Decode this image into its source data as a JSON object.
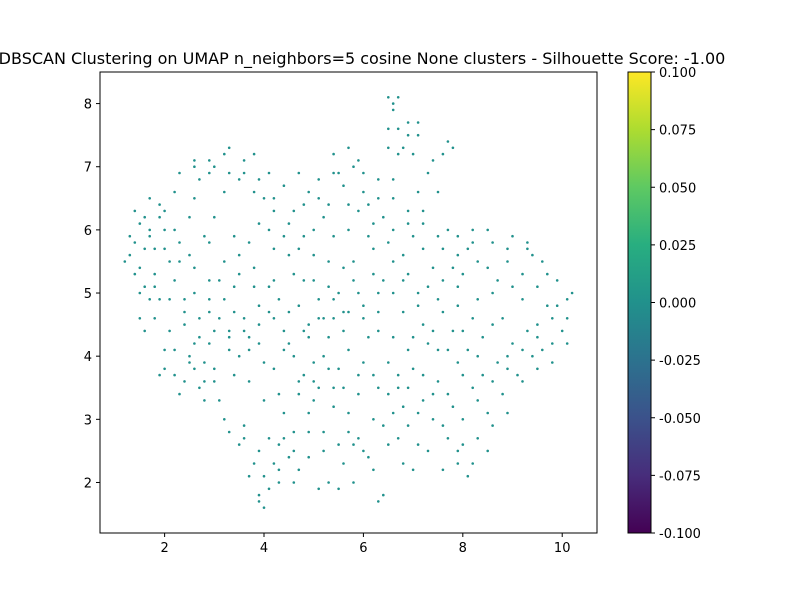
{
  "chart_data": {
    "type": "scatter",
    "title": "DBSCAN Clustering on UMAP n_neighbors=5 cosine None clusters - Silhouette Score: -1.00",
    "xlabel": "",
    "ylabel": "",
    "xlim": [
      0.7,
      10.7
    ],
    "ylim": [
      1.2,
      8.5
    ],
    "x_ticks": [
      2,
      4,
      6,
      8,
      10
    ],
    "y_ticks": [
      2,
      3,
      4,
      5,
      6,
      7,
      8
    ],
    "grid": false,
    "point_color": "#21918c",
    "colorbar": {
      "min": -0.1,
      "max": 0.1,
      "colormap": "viridis",
      "ticks": [
        "0.100",
        "0.075",
        "0.050",
        "0.025",
        "0.000",
        "-0.025",
        "-0.050",
        "-0.075",
        "-0.100"
      ],
      "tick_values": [
        0.1,
        0.075,
        0.05,
        0.025,
        0.0,
        -0.025,
        -0.05,
        -0.075,
        -0.1
      ]
    },
    "points": [
      [
        1.3,
        5.6
      ],
      [
        1.5,
        6.1
      ],
      [
        1.7,
        5.9
      ],
      [
        1.6,
        6.2
      ],
      [
        1.8,
        5.7
      ],
      [
        1.4,
        5.3
      ],
      [
        1.9,
        6.4
      ],
      [
        2.1,
        5.5
      ],
      [
        1.7,
        4.9
      ],
      [
        2.0,
        6.0
      ],
      [
        1.5,
        4.6
      ],
      [
        1.9,
        3.7
      ],
      [
        2.2,
        4.1
      ],
      [
        2.4,
        3.6
      ],
      [
        2.7,
        3.5
      ],
      [
        2.8,
        3.3
      ],
      [
        2.6,
        4.2
      ],
      [
        3.0,
        3.8
      ],
      [
        2.4,
        4.9
      ],
      [
        2.3,
        5.8
      ],
      [
        2.5,
        6.2
      ],
      [
        2.7,
        6.8
      ],
      [
        2.6,
        7.0
      ],
      [
        2.9,
        7.1
      ],
      [
        3.3,
        7.3
      ],
      [
        3.2,
        6.6
      ],
      [
        3.6,
        6.9
      ],
      [
        3.8,
        7.2
      ],
      [
        4.0,
        6.5
      ],
      [
        4.1,
        6.9
      ],
      [
        3.9,
        6.1
      ],
      [
        3.5,
        5.6
      ],
      [
        3.1,
        5.2
      ],
      [
        2.9,
        4.7
      ],
      [
        3.3,
        4.4
      ],
      [
        3.7,
        4.1
      ],
      [
        3.4,
        3.7
      ],
      [
        3.2,
        3.0
      ],
      [
        3.6,
        2.7
      ],
      [
        3.8,
        2.3
      ],
      [
        3.9,
        1.8
      ],
      [
        4.0,
        1.6
      ],
      [
        4.3,
        2.0
      ],
      [
        4.5,
        2.4
      ],
      [
        4.1,
        2.7
      ],
      [
        4.4,
        3.1
      ],
      [
        4.7,
        3.4
      ],
      [
        4.2,
        3.8
      ],
      [
        4.5,
        4.2
      ],
      [
        4.9,
        4.5
      ],
      [
        4.3,
        4.9
      ],
      [
        4.6,
        5.3
      ],
      [
        4.2,
        5.7
      ],
      [
        4.8,
        5.9
      ],
      [
        4.6,
        6.3
      ],
      [
        4.9,
        6.6
      ],
      [
        5.2,
        6.2
      ],
      [
        5.0,
        5.6
      ],
      [
        5.3,
        5.1
      ],
      [
        5.6,
        5.4
      ],
      [
        5.4,
        5.9
      ],
      [
        5.7,
        6.4
      ],
      [
        5.5,
        6.9
      ],
      [
        5.9,
        7.1
      ],
      [
        6.1,
        6.4
      ],
      [
        6.3,
        6.8
      ],
      [
        6.5,
        7.3
      ],
      [
        6.7,
        7.6
      ],
      [
        6.9,
        7.7
      ],
      [
        6.6,
        8.0
      ],
      [
        6.5,
        8.1
      ],
      [
        7.0,
        7.2
      ],
      [
        7.3,
        6.9
      ],
      [
        7.7,
        7.4
      ],
      [
        7.5,
        6.6
      ],
      [
        7.2,
        6.1
      ],
      [
        7.6,
        5.7
      ],
      [
        7.9,
        5.9
      ],
      [
        8.2,
        6.0
      ],
      [
        8.6,
        5.8
      ],
      [
        9.0,
        5.9
      ],
      [
        9.3,
        5.7
      ],
      [
        9.6,
        5.5
      ],
      [
        9.9,
        5.2
      ],
      [
        10.2,
        5.0
      ],
      [
        10.1,
        4.6
      ],
      [
        9.8,
        4.2
      ],
      [
        9.4,
        4.0
      ],
      [
        9.1,
        3.7
      ],
      [
        8.8,
        3.4
      ],
      [
        8.5,
        3.1
      ],
      [
        8.2,
        3.5
      ],
      [
        7.9,
        3.9
      ],
      [
        8.4,
        4.3
      ],
      [
        8.8,
        4.6
      ],
      [
        9.2,
        4.9
      ],
      [
        9.5,
        4.5
      ],
      [
        8.7,
        5.2
      ],
      [
        8.3,
        5.5
      ],
      [
        7.9,
        5.1
      ],
      [
        7.6,
        4.7
      ],
      [
        7.3,
        4.2
      ],
      [
        7.0,
        3.8
      ],
      [
        6.7,
        3.5
      ],
      [
        6.5,
        3.9
      ],
      [
        6.3,
        4.4
      ],
      [
        6.0,
        4.8
      ],
      [
        6.4,
        5.2
      ],
      [
        6.8,
        5.6
      ],
      [
        6.6,
        6.0
      ],
      [
        6.2,
        5.7
      ],
      [
        5.8,
        5.2
      ],
      [
        5.6,
        4.7
      ],
      [
        5.3,
        4.3
      ],
      [
        5.0,
        3.9
      ],
      [
        5.4,
        3.5
      ],
      [
        5.7,
        3.1
      ],
      [
        5.9,
        2.7
      ],
      [
        5.6,
        2.3
      ],
      [
        5.3,
        2.0
      ],
      [
        5.1,
        1.9
      ],
      [
        5.2,
        2.5
      ],
      [
        4.9,
        2.8
      ],
      [
        4.7,
        2.2
      ],
      [
        5.0,
        3.3
      ],
      [
        5.5,
        3.8
      ],
      [
        5.9,
        3.4
      ],
      [
        6.2,
        3.0
      ],
      [
        6.5,
        2.6
      ],
      [
        6.8,
        2.3
      ],
      [
        7.1,
        2.6
      ],
      [
        7.4,
        3.0
      ],
      [
        7.7,
        2.7
      ],
      [
        7.9,
        2.3
      ],
      [
        8.1,
        2.1
      ],
      [
        7.8,
        3.2
      ],
      [
        7.5,
        3.6
      ],
      [
        7.2,
        3.3
      ],
      [
        6.9,
        2.9
      ],
      [
        6.4,
        1.8
      ],
      [
        6.3,
        1.7
      ],
      [
        4.4,
        2.7
      ],
      [
        4.0,
        3.3
      ],
      [
        3.7,
        3.6
      ],
      [
        3.5,
        4.0
      ],
      [
        3.9,
        4.5
      ],
      [
        4.1,
        5.1
      ],
      [
        3.8,
        5.4
      ],
      [
        3.4,
        5.9
      ],
      [
        3.0,
        6.2
      ],
      [
        2.8,
        5.9
      ],
      [
        2.6,
        5.4
      ],
      [
        2.2,
        5.2
      ],
      [
        1.9,
        4.9
      ],
      [
        1.6,
        5.1
      ],
      [
        1.3,
        5.9
      ],
      [
        1.4,
        6.3
      ],
      [
        1.7,
        6.5
      ],
      [
        2.0,
        6.3
      ],
      [
        2.2,
        6.6
      ],
      [
        2.1,
        4.4
      ],
      [
        2.4,
        4.5
      ],
      [
        2.0,
        3.8
      ],
      [
        2.3,
        3.4
      ],
      [
        2.6,
        3.8
      ],
      [
        2.9,
        4.2
      ],
      [
        3.1,
        4.6
      ],
      [
        3.4,
        5.1
      ],
      [
        3.7,
        5.8
      ],
      [
        4.2,
        6.3
      ],
      [
        4.4,
        6.7
      ],
      [
        4.7,
        6.9
      ],
      [
        5.1,
        6.8
      ],
      [
        5.4,
        7.2
      ],
      [
        5.8,
        7.0
      ],
      [
        6.0,
        6.6
      ],
      [
        6.6,
        6.5
      ],
      [
        6.9,
        6.3
      ],
      [
        7.1,
        6.6
      ],
      [
        7.4,
        7.1
      ],
      [
        7.1,
        7.5
      ],
      [
        6.8,
        7.3
      ],
      [
        7.0,
        5.9
      ],
      [
        7.4,
        5.4
      ],
      [
        7.1,
        5.0
      ],
      [
        6.8,
        4.7
      ],
      [
        6.6,
        4.3
      ],
      [
        6.9,
        4.1
      ],
      [
        7.2,
        4.5
      ],
      [
        7.5,
        4.9
      ],
      [
        7.8,
        5.4
      ],
      [
        8.1,
        5.7
      ],
      [
        8.5,
        5.4
      ],
      [
        8.9,
        5.5
      ],
      [
        9.2,
        5.3
      ],
      [
        9.5,
        5.1
      ],
      [
        9.7,
        4.8
      ],
      [
        10.0,
        4.4
      ],
      [
        9.6,
        4.1
      ],
      [
        9.3,
        4.4
      ],
      [
        9.0,
        4.2
      ],
      [
        8.7,
        3.9
      ],
      [
        8.4,
        3.7
      ],
      [
        8.1,
        4.1
      ],
      [
        7.8,
        4.4
      ],
      [
        7.5,
        4.1
      ],
      [
        7.2,
        3.7
      ],
      [
        6.9,
        3.5
      ],
      [
        6.6,
        3.1
      ],
      [
        6.3,
        3.5
      ],
      [
        6.0,
        3.9
      ],
      [
        5.7,
        4.1
      ],
      [
        5.4,
        4.6
      ],
      [
        5.1,
        4.9
      ],
      [
        4.8,
        5.2
      ],
      [
        4.5,
        5.6
      ],
      [
        4.2,
        5.2
      ],
      [
        3.9,
        4.8
      ],
      [
        3.6,
        4.6
      ],
      [
        3.3,
        4.1
      ],
      [
        3.0,
        3.6
      ],
      [
        2.8,
        3.9
      ],
      [
        2.5,
        4.0
      ],
      [
        2.7,
        4.6
      ],
      [
        2.9,
        5.2
      ],
      [
        2.5,
        5.6
      ],
      [
        2.2,
        6.0
      ],
      [
        1.9,
        6.2
      ],
      [
        1.6,
        5.7
      ],
      [
        1.8,
        5.3
      ],
      [
        1.5,
        5.0
      ],
      [
        4.6,
        4.0
      ],
      [
        4.9,
        4.3
      ],
      [
        5.2,
        4.6
      ],
      [
        5.5,
        5.0
      ],
      [
        5.8,
        5.5
      ],
      [
        6.1,
        5.9
      ],
      [
        6.4,
        6.2
      ],
      [
        5.7,
        6.0
      ],
      [
        5.3,
        5.5
      ],
      [
        5.0,
        5.2
      ],
      [
        4.7,
        4.8
      ],
      [
        4.4,
        4.4
      ],
      [
        4.8,
        3.7
      ],
      [
        5.1,
        3.5
      ],
      [
        5.4,
        3.2
      ],
      [
        5.7,
        2.8
      ],
      [
        6.0,
        2.5
      ],
      [
        6.2,
        2.2
      ],
      [
        5.8,
        2.0
      ],
      [
        5.5,
        1.9
      ],
      [
        4.6,
        2.0
      ],
      [
        4.2,
        2.3
      ],
      [
        3.9,
        2.5
      ],
      [
        3.6,
        2.9
      ],
      [
        6.1,
        4.3
      ],
      [
        6.3,
        4.7
      ],
      [
        6.6,
        5.0
      ],
      [
        6.9,
        5.3
      ],
      [
        7.2,
        5.7
      ],
      [
        7.7,
        6.0
      ],
      [
        8.0,
        5.3
      ],
      [
        8.3,
        4.9
      ],
      [
        8.6,
        4.5
      ],
      [
        8.9,
        4.0
      ],
      [
        9.2,
        3.6
      ],
      [
        9.5,
        3.8
      ],
      [
        9.8,
        3.9
      ],
      [
        10.1,
        4.2
      ],
      [
        9.9,
        4.8
      ],
      [
        9.4,
        5.6
      ],
      [
        9.0,
        5.1
      ],
      [
        8.6,
        5.0
      ],
      [
        8.2,
        4.6
      ],
      [
        7.9,
        4.8
      ],
      [
        7.6,
        5.2
      ],
      [
        7.3,
        5.1
      ],
      [
        8.0,
        3.7
      ],
      [
        8.3,
        3.3
      ],
      [
        8.6,
        2.9
      ],
      [
        8.9,
        3.1
      ],
      [
        8.0,
        2.6
      ],
      [
        7.6,
        2.9
      ],
      [
        7.3,
        2.5
      ],
      [
        7.0,
        2.2
      ],
      [
        6.7,
        2.7
      ],
      [
        6.4,
        2.9
      ],
      [
        6.7,
        3.7
      ],
      [
        7.0,
        4.3
      ],
      [
        6.2,
        5.3
      ],
      [
        5.9,
        5.0
      ],
      [
        5.6,
        4.4
      ],
      [
        5.2,
        4.0
      ],
      [
        4.9,
        3.1
      ],
      [
        4.6,
        2.8
      ],
      [
        4.3,
        3.4
      ],
      [
        4.0,
        3.9
      ],
      [
        3.7,
        4.3
      ],
      [
        3.4,
        4.7
      ],
      [
        3.2,
        5.5
      ],
      [
        2.9,
        5.8
      ],
      [
        2.6,
        6.5
      ],
      [
        2.9,
        6.9
      ],
      [
        3.2,
        7.2
      ],
      [
        3.5,
        6.8
      ],
      [
        3.8,
        6.6
      ],
      [
        4.1,
        6.0
      ],
      [
        4.4,
        5.9
      ],
      [
        4.7,
        5.7
      ],
      [
        5.0,
        6.0
      ],
      [
        5.3,
        6.4
      ],
      [
        5.6,
        6.7
      ],
      [
        5.9,
        6.3
      ],
      [
        6.2,
        6.1
      ],
      [
        6.5,
        5.8
      ],
      [
        6.8,
        5.2
      ],
      [
        7.1,
        4.8
      ],
      [
        7.4,
        4.4
      ],
      [
        7.7,
        4.1
      ],
      [
        8.0,
        4.4
      ],
      [
        8.3,
        4.0
      ],
      [
        8.6,
        3.6
      ],
      [
        8.9,
        3.8
      ],
      [
        9.2,
        4.1
      ],
      [
        9.5,
        4.3
      ],
      [
        9.8,
        4.6
      ],
      [
        10.1,
        4.9
      ],
      [
        9.7,
        5.3
      ],
      [
        9.3,
        5.8
      ],
      [
        8.9,
        5.7
      ],
      [
        8.5,
        6.0
      ],
      [
        8.2,
        5.8
      ],
      [
        7.9,
        5.6
      ],
      [
        7.5,
        5.9
      ],
      [
        7.2,
        6.3
      ],
      [
        6.9,
        6.1
      ],
      [
        6.6,
        5.5
      ],
      [
        6.3,
        5.0
      ],
      [
        6.0,
        4.6
      ],
      [
        5.7,
        4.7
      ],
      [
        5.4,
        4.9
      ],
      [
        5.1,
        4.6
      ],
      [
        4.8,
        4.4
      ],
      [
        4.5,
        4.7
      ],
      [
        4.2,
        4.6
      ],
      [
        3.9,
        4.2
      ],
      [
        3.6,
        4.4
      ],
      [
        3.3,
        4.3
      ],
      [
        3.0,
        4.4
      ],
      [
        2.7,
        4.3
      ],
      [
        2.4,
        4.7
      ],
      [
        2.1,
        4.9
      ],
      [
        1.8,
        5.1
      ],
      [
        1.5,
        5.4
      ],
      [
        1.2,
        5.5
      ],
      [
        1.4,
        5.8
      ],
      [
        1.7,
        6.0
      ],
      [
        2.0,
        5.7
      ],
      [
        2.3,
        5.5
      ],
      [
        2.6,
        5.0
      ],
      [
        2.9,
        4.9
      ],
      [
        3.2,
        4.9
      ],
      [
        3.5,
        5.3
      ],
      [
        3.8,
        5.1
      ],
      [
        4.1,
        4.7
      ],
      [
        4.4,
        4.1
      ],
      [
        4.7,
        3.6
      ],
      [
        5.0,
        3.6
      ],
      [
        5.3,
        3.8
      ],
      [
        5.6,
        3.5
      ],
      [
        5.9,
        3.7
      ],
      [
        6.2,
        3.7
      ],
      [
        6.5,
        3.4
      ],
      [
        6.8,
        3.2
      ],
      [
        7.1,
        3.1
      ],
      [
        7.4,
        3.4
      ],
      [
        7.7,
        3.4
      ],
      [
        8.0,
        3.0
      ],
      [
        8.3,
        2.7
      ],
      [
        8.5,
        2.5
      ],
      [
        8.2,
        2.3
      ],
      [
        7.9,
        2.5
      ],
      [
        7.6,
        2.2
      ],
      [
        6.1,
        2.4
      ],
      [
        5.8,
        2.6
      ],
      [
        5.5,
        2.6
      ],
      [
        5.2,
        2.8
      ],
      [
        4.9,
        2.4
      ],
      [
        4.6,
        2.5
      ],
      [
        4.3,
        2.6
      ],
      [
        4.0,
        2.1
      ],
      [
        3.9,
        1.7
      ],
      [
        4.1,
        1.9
      ],
      [
        4.3,
        2.2
      ],
      [
        3.7,
        2.1
      ],
      [
        3.5,
        2.6
      ],
      [
        3.3,
        2.8
      ],
      [
        3.1,
        3.3
      ],
      [
        2.8,
        3.6
      ],
      [
        2.5,
        3.9
      ],
      [
        2.2,
        3.7
      ],
      [
        2.0,
        4.1
      ],
      [
        1.8,
        4.6
      ],
      [
        1.6,
        4.4
      ],
      [
        2.3,
        6.9
      ],
      [
        2.6,
        7.1
      ],
      [
        3.0,
        7.0
      ],
      [
        3.3,
        6.9
      ],
      [
        3.6,
        7.1
      ],
      [
        3.9,
        6.8
      ],
      [
        4.2,
        6.5
      ],
      [
        4.5,
        6.1
      ],
      [
        4.8,
        6.4
      ],
      [
        5.1,
        6.5
      ],
      [
        5.4,
        6.9
      ],
      [
        5.7,
        7.3
      ],
      [
        6.0,
        6.9
      ],
      [
        6.3,
        6.5
      ],
      [
        6.6,
        6.8
      ],
      [
        6.7,
        7.2
      ],
      [
        6.9,
        7.5
      ],
      [
        7.1,
        7.7
      ],
      [
        7.6,
        7.2
      ],
      [
        7.8,
        7.3
      ],
      [
        6.5,
        7.6
      ],
      [
        6.6,
        7.9
      ],
      [
        6.7,
        8.1
      ]
    ]
  }
}
